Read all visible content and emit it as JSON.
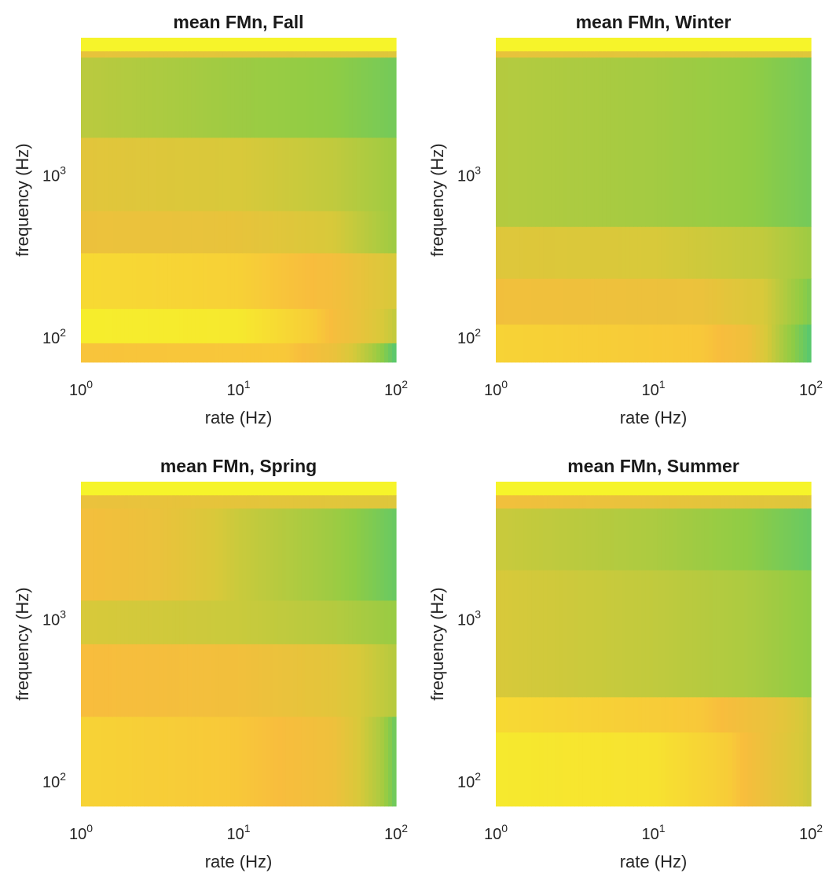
{
  "chart_data": [
    {
      "type": "heatmap",
      "title": "mean FMn, Fall",
      "xlabel": "rate (Hz)",
      "ylabel": "frequency (Hz)",
      "xscale": "log",
      "yscale": "log",
      "xlim": [
        1,
        100
      ],
      "ylim": [
        70,
        7000
      ],
      "xticks": [
        {
          "base": "10",
          "exp": "0"
        },
        {
          "base": "10",
          "exp": "1"
        },
        {
          "base": "10",
          "exp": "2"
        }
      ],
      "yticks": [
        {
          "base": "10",
          "exp": "2"
        },
        {
          "base": "10",
          "exp": "3"
        }
      ],
      "colormap": [
        "#2ec58f",
        "#8fcc45",
        "#d8c93a",
        "#f8bd3d",
        "#f6f42a"
      ],
      "color_range": [
        0,
        1
      ],
      "rows": [
        {
          "ylow": 70,
          "yhigh": 92,
          "anchors": [
            [
              1,
              0.78
            ],
            [
              20,
              0.8
            ],
            [
              40,
              0.65
            ],
            [
              70,
              0.35
            ],
            [
              100,
              0.1
            ]
          ]
        },
        {
          "ylow": 92,
          "yhigh": 150,
          "anchors": [
            [
              1,
              0.97
            ],
            [
              10,
              0.95
            ],
            [
              30,
              0.82
            ],
            [
              60,
              0.62
            ],
            [
              100,
              0.42
            ]
          ]
        },
        {
          "ylow": 150,
          "yhigh": 330,
          "anchors": [
            [
              1,
              0.88
            ],
            [
              10,
              0.84
            ],
            [
              40,
              0.72
            ],
            [
              80,
              0.55
            ],
            [
              100,
              0.5
            ]
          ]
        },
        {
          "ylow": 330,
          "yhigh": 600,
          "anchors": [
            [
              1,
              0.66
            ],
            [
              10,
              0.62
            ],
            [
              40,
              0.5
            ],
            [
              100,
              0.3
            ]
          ]
        },
        {
          "ylow": 600,
          "yhigh": 1700,
          "anchors": [
            [
              1,
              0.58
            ],
            [
              10,
              0.5
            ],
            [
              40,
              0.42
            ],
            [
              100,
              0.3
            ]
          ]
        },
        {
          "ylow": 1700,
          "yhigh": 5300,
          "anchors": [
            [
              1,
              0.4
            ],
            [
              10,
              0.3
            ],
            [
              40,
              0.25
            ],
            [
              100,
              0.18
            ]
          ]
        },
        {
          "ylow": 5300,
          "yhigh": 5800,
          "anchors": [
            [
              1,
              0.62
            ],
            [
              100,
              0.55
            ]
          ]
        },
        {
          "ylow": 5800,
          "yhigh": 7000,
          "anchors": [
            [
              1,
              1.0
            ],
            [
              100,
              1.0
            ]
          ]
        }
      ]
    },
    {
      "type": "heatmap",
      "title": "mean FMn, Winter",
      "xlabel": "rate (Hz)",
      "ylabel": "frequency (Hz)",
      "xscale": "log",
      "yscale": "log",
      "xlim": [
        1,
        100
      ],
      "ylim": [
        70,
        7000
      ],
      "xticks": [
        {
          "base": "10",
          "exp": "0"
        },
        {
          "base": "10",
          "exp": "1"
        },
        {
          "base": "10",
          "exp": "2"
        }
      ],
      "yticks": [
        {
          "base": "10",
          "exp": "2"
        },
        {
          "base": "10",
          "exp": "3"
        }
      ],
      "colormap": [
        "#2ec58f",
        "#8fcc45",
        "#d8c93a",
        "#f8bd3d",
        "#f6f42a"
      ],
      "color_range": [
        0,
        1
      ],
      "rows": [
        {
          "ylow": 70,
          "yhigh": 120,
          "anchors": [
            [
              1,
              0.85
            ],
            [
              20,
              0.8
            ],
            [
              40,
              0.68
            ],
            [
              70,
              0.3
            ],
            [
              100,
              0.1
            ]
          ]
        },
        {
          "ylow": 120,
          "yhigh": 230,
          "anchors": [
            [
              1,
              0.7
            ],
            [
              20,
              0.65
            ],
            [
              50,
              0.5
            ],
            [
              100,
              0.2
            ]
          ]
        },
        {
          "ylow": 230,
          "yhigh": 480,
          "anchors": [
            [
              1,
              0.55
            ],
            [
              10,
              0.5
            ],
            [
              50,
              0.42
            ],
            [
              100,
              0.3
            ]
          ]
        },
        {
          "ylow": 480,
          "yhigh": 5300,
          "anchors": [
            [
              1,
              0.38
            ],
            [
              10,
              0.32
            ],
            [
              40,
              0.26
            ],
            [
              100,
              0.18
            ]
          ]
        },
        {
          "ylow": 5300,
          "yhigh": 5800,
          "anchors": [
            [
              1,
              0.62
            ],
            [
              100,
              0.55
            ]
          ]
        },
        {
          "ylow": 5800,
          "yhigh": 7000,
          "anchors": [
            [
              1,
              1.0
            ],
            [
              100,
              1.0
            ]
          ]
        }
      ]
    },
    {
      "type": "heatmap",
      "title": "mean FMn, Spring",
      "xlabel": "rate (Hz)",
      "ylabel": "frequency (Hz)",
      "xscale": "log",
      "yscale": "log",
      "xlim": [
        1,
        100
      ],
      "ylim": [
        70,
        7000
      ],
      "xticks": [
        {
          "base": "10",
          "exp": "0"
        },
        {
          "base": "10",
          "exp": "1"
        },
        {
          "base": "10",
          "exp": "2"
        }
      ],
      "yticks": [
        {
          "base": "10",
          "exp": "2"
        },
        {
          "base": "10",
          "exp": "3"
        }
      ],
      "colormap": [
        "#2ec58f",
        "#8fcc45",
        "#d8c93a",
        "#f8bd3d",
        "#f6f42a"
      ],
      "color_range": [
        0,
        1
      ],
      "rows": [
        {
          "ylow": 70,
          "yhigh": 250,
          "anchors": [
            [
              1,
              0.85
            ],
            [
              10,
              0.8
            ],
            [
              40,
              0.68
            ],
            [
              80,
              0.35
            ],
            [
              100,
              0.15
            ]
          ]
        },
        {
          "ylow": 250,
          "yhigh": 700,
          "anchors": [
            [
              1,
              0.75
            ],
            [
              10,
              0.7
            ],
            [
              40,
              0.58
            ],
            [
              100,
              0.38
            ]
          ]
        },
        {
          "ylow": 700,
          "yhigh": 1300,
          "anchors": [
            [
              1,
              0.5
            ],
            [
              10,
              0.45
            ],
            [
              40,
              0.38
            ],
            [
              100,
              0.28
            ]
          ]
        },
        {
          "ylow": 1300,
          "yhigh": 4800,
          "anchors": [
            [
              1,
              0.72
            ],
            [
              3,
              0.65
            ],
            [
              10,
              0.45
            ],
            [
              40,
              0.3
            ],
            [
              100,
              0.15
            ]
          ]
        },
        {
          "ylow": 4800,
          "yhigh": 5800,
          "anchors": [
            [
              1,
              0.65
            ],
            [
              100,
              0.55
            ]
          ]
        },
        {
          "ylow": 5800,
          "yhigh": 7000,
          "anchors": [
            [
              1,
              1.0
            ],
            [
              100,
              1.0
            ]
          ]
        }
      ]
    },
    {
      "type": "heatmap",
      "title": "mean FMn, Summer",
      "xlabel": "rate (Hz)",
      "ylabel": "frequency (Hz)",
      "xscale": "log",
      "yscale": "log",
      "xlim": [
        1,
        100
      ],
      "ylim": [
        70,
        7000
      ],
      "xticks": [
        {
          "base": "10",
          "exp": "0"
        },
        {
          "base": "10",
          "exp": "1"
        },
        {
          "base": "10",
          "exp": "2"
        }
      ],
      "yticks": [
        {
          "base": "10",
          "exp": "2"
        },
        {
          "base": "10",
          "exp": "3"
        }
      ],
      "colormap": [
        "#2ec58f",
        "#8fcc45",
        "#d8c93a",
        "#f8bd3d",
        "#f6f42a"
      ],
      "color_range": [
        0,
        1
      ],
      "rows": [
        {
          "ylow": 70,
          "yhigh": 200,
          "anchors": [
            [
              1,
              0.95
            ],
            [
              10,
              0.92
            ],
            [
              30,
              0.82
            ],
            [
              60,
              0.6
            ],
            [
              100,
              0.45
            ]
          ]
        },
        {
          "ylow": 200,
          "yhigh": 330,
          "anchors": [
            [
              1,
              0.88
            ],
            [
              20,
              0.8
            ],
            [
              60,
              0.62
            ],
            [
              100,
              0.45
            ]
          ]
        },
        {
          "ylow": 330,
          "yhigh": 2000,
          "anchors": [
            [
              1,
              0.5
            ],
            [
              10,
              0.42
            ],
            [
              40,
              0.35
            ],
            [
              100,
              0.25
            ]
          ]
        },
        {
          "ylow": 2000,
          "yhigh": 4800,
          "anchors": [
            [
              1,
              0.45
            ],
            [
              10,
              0.35
            ],
            [
              40,
              0.25
            ],
            [
              100,
              0.15
            ]
          ]
        },
        {
          "ylow": 4800,
          "yhigh": 5800,
          "anchors": [
            [
              1,
              0.7
            ],
            [
              100,
              0.55
            ]
          ]
        },
        {
          "ylow": 5800,
          "yhigh": 7000,
          "anchors": [
            [
              1,
              1.0
            ],
            [
              100,
              1.0
            ]
          ]
        }
      ]
    }
  ]
}
